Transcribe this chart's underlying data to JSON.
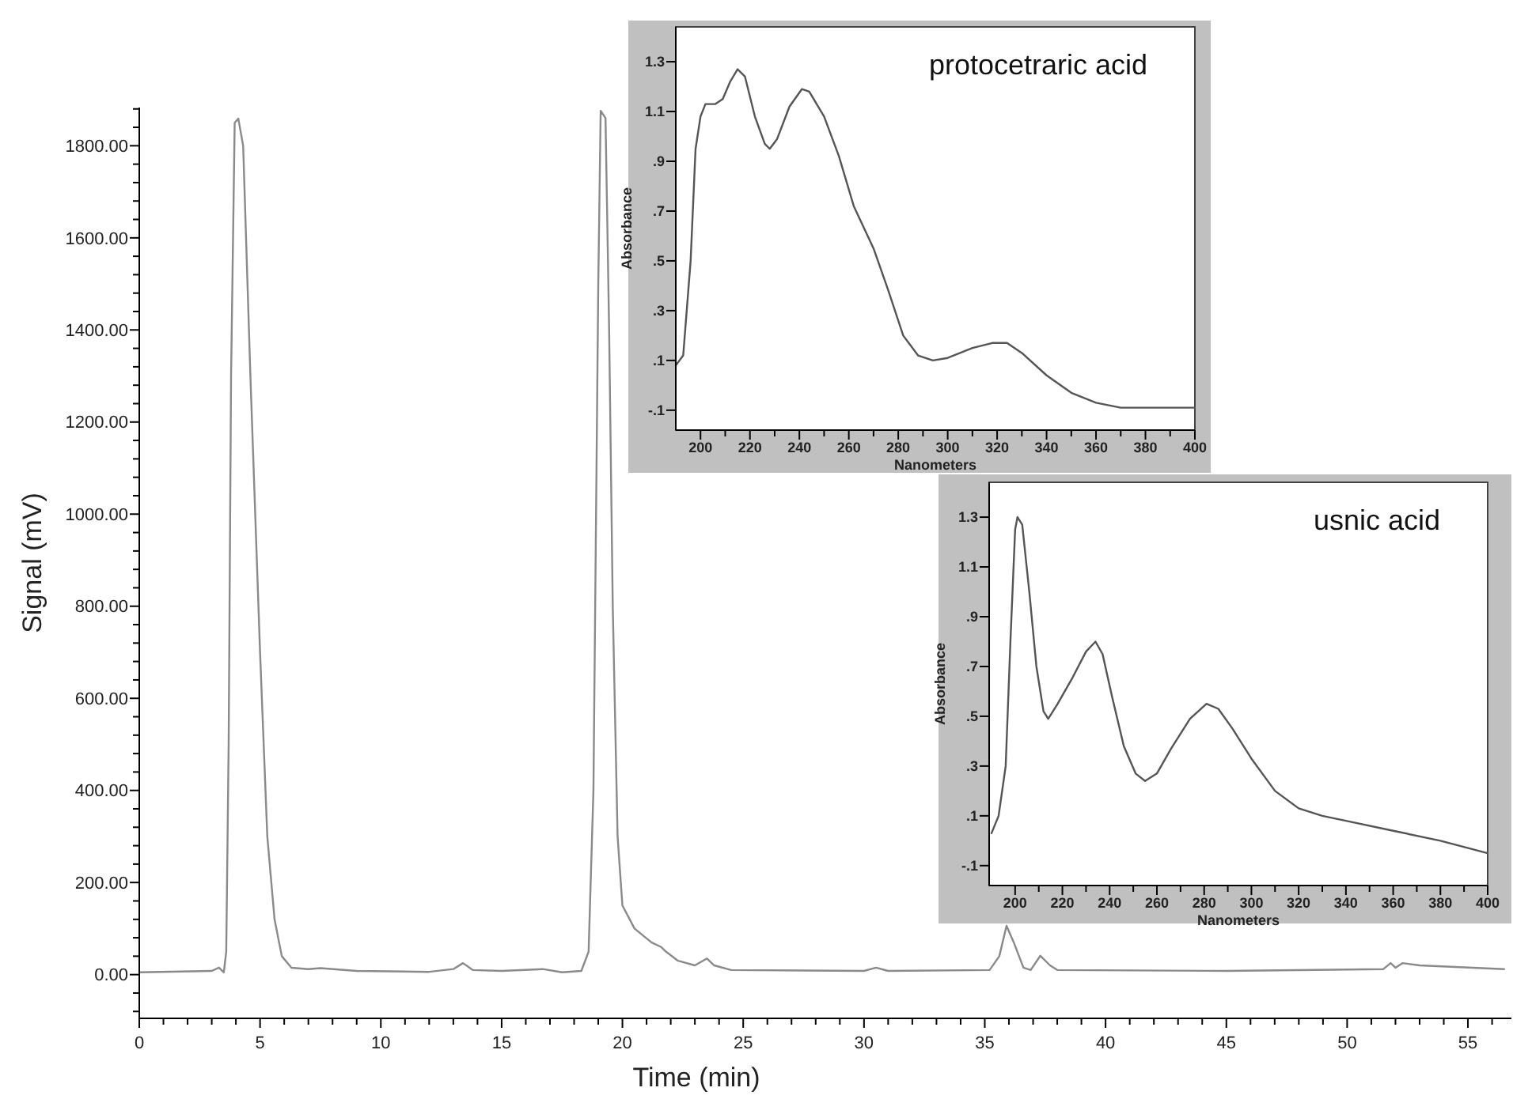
{
  "chart_data": [
    {
      "type": "line",
      "xlabel": "Time (min)",
      "ylabel": "Signal (mV)",
      "color": "#8a8a8a",
      "x": [
        0,
        3,
        3.3,
        3.5,
        3.6,
        3.7,
        3.8,
        3.95,
        4.1,
        4.3,
        4.6,
        5.0,
        5.3,
        5.6,
        5.9,
        6.3,
        7,
        7.5,
        9,
        12,
        13,
        13.4,
        13.8,
        15,
        16.7,
        17.5,
        18.3,
        18.6,
        18.8,
        19.0,
        19.1,
        19.3,
        19.45,
        19.6,
        19.8,
        20.0,
        20.5,
        21.2,
        21.6,
        21.8,
        22.3,
        23,
        23.5,
        23.8,
        24.5,
        30,
        30.5,
        31,
        35.2,
        35.6,
        35.9,
        36.2,
        36.6,
        36.9,
        37.3,
        37.7,
        38,
        45,
        51.5,
        51.8,
        52,
        52.3,
        53,
        56.5
      ],
      "values": [
        5,
        8,
        15,
        5,
        50,
        500,
        1300,
        1850,
        1859,
        1800,
        1300,
        700,
        300,
        120,
        40,
        15,
        12,
        14,
        8,
        6,
        12,
        25,
        10,
        8,
        12,
        5,
        8,
        50,
        400,
        1500,
        1876,
        1860,
        1400,
        800,
        300,
        150,
        100,
        70,
        60,
        50,
        30,
        20,
        35,
        20,
        10,
        8,
        15,
        8,
        10,
        40,
        106,
        70,
        15,
        10,
        41,
        20,
        10,
        8,
        12,
        25,
        15,
        25,
        20,
        12
      ],
      "xlim": [
        0,
        56.8
      ],
      "ylim": [
        -95,
        1883
      ],
      "xticks": [
        0,
        {
          "value": 1,
          "label": null
        },
        {
          "value": 2,
          "label": null
        },
        {
          "value": 3,
          "label": null
        },
        {
          "value": 4,
          "label": null
        },
        5,
        {
          "value": 6,
          "label": null
        },
        {
          "value": 7,
          "label": null
        },
        {
          "value": 8,
          "label": null
        },
        {
          "value": 9,
          "label": null
        },
        10,
        {
          "value": 11,
          "label": null
        },
        {
          "value": 12,
          "label": null
        },
        {
          "value": 13,
          "label": null
        },
        {
          "value": 14,
          "label": null
        },
        15,
        {
          "value": 16,
          "label": null
        },
        {
          "value": 17,
          "label": null
        },
        {
          "value": 18,
          "label": null
        },
        {
          "value": 19,
          "label": null
        },
        20,
        {
          "value": 21,
          "label": null
        },
        {
          "value": 22,
          "label": null
        },
        {
          "value": 23,
          "label": null
        },
        {
          "value": 24,
          "label": null
        },
        25,
        {
          "value": 26,
          "label": null
        },
        {
          "value": 27,
          "label": null
        },
        {
          "value": 28,
          "label": null
        },
        {
          "value": 29,
          "label": null
        },
        30,
        {
          "value": 31,
          "label": null
        },
        {
          "value": 32,
          "label": null
        },
        {
          "value": 33,
          "label": null
        },
        {
          "value": 34,
          "label": null
        },
        35,
        {
          "value": 36,
          "label": null
        },
        {
          "value": 37,
          "label": null
        },
        {
          "value": 38,
          "label": null
        },
        {
          "value": 39,
          "label": null
        },
        40,
        {
          "value": 41,
          "label": null
        },
        {
          "value": 42,
          "label": null
        },
        {
          "value": 43,
          "label": null
        },
        {
          "value": 44,
          "label": null
        },
        45,
        {
          "value": 46,
          "label": null
        },
        {
          "value": 47,
          "label": null
        },
        {
          "value": 48,
          "label": null
        },
        {
          "value": 49,
          "label": null
        },
        50,
        {
          "value": 51,
          "label": null
        },
        {
          "value": 52,
          "label": null
        },
        {
          "value": 53,
          "label": null
        },
        {
          "value": 54,
          "label": null
        },
        55,
        {
          "value": 56,
          "label": null
        }
      ],
      "yticks": [
        {
          "value": -80,
          "label": null
        },
        {
          "value": -40,
          "label": null
        },
        {
          "value": 0,
          "label": "0.00"
        },
        {
          "value": 40,
          "label": null
        },
        {
          "value": 80,
          "label": null
        },
        {
          "value": 120,
          "label": null
        },
        {
          "value": 160,
          "label": null
        },
        {
          "value": 200,
          "label": "200.00"
        },
        {
          "value": 240,
          "label": null
        },
        {
          "value": 280,
          "label": null
        },
        {
          "value": 320,
          "label": null
        },
        {
          "value": 360,
          "label": null
        },
        {
          "value": 400,
          "label": "400.00"
        },
        {
          "value": 440,
          "label": null
        },
        {
          "value": 480,
          "label": null
        },
        {
          "value": 520,
          "label": null
        },
        {
          "value": 560,
          "label": null
        },
        {
          "value": 600,
          "label": "600.00"
        },
        {
          "value": 640,
          "label": null
        },
        {
          "value": 680,
          "label": null
        },
        {
          "value": 720,
          "label": null
        },
        {
          "value": 760,
          "label": null
        },
        {
          "value": 800,
          "label": "800.00"
        },
        {
          "value": 840,
          "label": null
        },
        {
          "value": 880,
          "label": null
        },
        {
          "value": 920,
          "label": null
        },
        {
          "value": 960,
          "label": null
        },
        {
          "value": 1000,
          "label": "1000.00"
        },
        {
          "value": 1040,
          "label": null
        },
        {
          "value": 1080,
          "label": null
        },
        {
          "value": 1120,
          "label": null
        },
        {
          "value": 1160,
          "label": null
        },
        {
          "value": 1200,
          "label": "1200.00"
        },
        {
          "value": 1240,
          "label": null
        },
        {
          "value": 1280,
          "label": null
        },
        {
          "value": 1320,
          "label": null
        },
        {
          "value": 1360,
          "label": null
        },
        {
          "value": 1400,
          "label": "1400.00"
        },
        {
          "value": 1440,
          "label": null
        },
        {
          "value": 1480,
          "label": null
        },
        {
          "value": 1520,
          "label": null
        },
        {
          "value": 1560,
          "label": null
        },
        {
          "value": 1600,
          "label": "1600.00"
        },
        {
          "value": 1640,
          "label": null
        },
        {
          "value": 1680,
          "label": null
        },
        {
          "value": 1720,
          "label": null
        },
        {
          "value": 1760,
          "label": null
        },
        {
          "value": 1800,
          "label": "1800.00"
        },
        {
          "value": 1840,
          "label": null
        },
        {
          "value": 1880,
          "label": null
        }
      ]
    },
    {
      "type": "line",
      "title": "protocetraric acid",
      "xlabel": "Nanometers",
      "ylabel": "Absorbance",
      "color": "#555555",
      "x": [
        190,
        193,
        196,
        198,
        200,
        202,
        206,
        209,
        212,
        215,
        218,
        222,
        226,
        228,
        231,
        236,
        241,
        244,
        250,
        256,
        262,
        270,
        276,
        282,
        288,
        294,
        300,
        310,
        318,
        324,
        330,
        340,
        350,
        360,
        370,
        380,
        390,
        400
      ],
      "values": [
        0.08,
        0.12,
        0.5,
        0.95,
        1.08,
        1.13,
        1.13,
        1.15,
        1.22,
        1.27,
        1.24,
        1.08,
        0.97,
        0.95,
        0.99,
        1.12,
        1.19,
        1.18,
        1.08,
        0.92,
        0.72,
        0.55,
        0.38,
        0.2,
        0.12,
        0.1,
        0.11,
        0.15,
        0.17,
        0.17,
        0.13,
        0.04,
        -0.03,
        -0.07,
        -0.09,
        -0.09,
        -0.09,
        -0.09
      ],
      "xlim": [
        190,
        400
      ],
      "ylim": [
        -0.18,
        1.44
      ],
      "xticks": [
        200,
        {
          "value": 210,
          "label": null
        },
        220,
        {
          "value": 230,
          "label": null
        },
        240,
        {
          "value": 250,
          "label": null
        },
        260,
        {
          "value": 270,
          "label": null
        },
        280,
        {
          "value": 290,
          "label": null
        },
        300,
        {
          "value": 310,
          "label": null
        },
        320,
        {
          "value": 330,
          "label": null
        },
        340,
        {
          "value": 350,
          "label": null
        },
        360,
        {
          "value": 370,
          "label": null
        },
        380,
        {
          "value": 390,
          "label": null
        },
        400
      ],
      "yticks": [
        {
          "value": -0.1,
          "label": "-.1"
        },
        {
          "value": 0.1,
          "label": ".1"
        },
        {
          "value": 0.3,
          "label": ".3"
        },
        {
          "value": 0.5,
          "label": ".5"
        },
        {
          "value": 0.7,
          "label": ".7"
        },
        {
          "value": 0.9,
          "label": ".9"
        },
        {
          "value": 1.1,
          "label": "1.1"
        },
        {
          "value": 1.3,
          "label": "1.3"
        }
      ]
    },
    {
      "type": "line",
      "title": "usnic acid",
      "xlabel": "Nanometers",
      "ylabel": "Absorbance",
      "color": "#555555",
      "x": [
        190,
        193,
        196,
        198,
        200,
        201,
        203,
        206,
        209,
        212,
        214,
        218,
        224,
        230,
        234,
        237,
        241,
        246,
        251,
        255,
        260,
        266,
        274,
        281,
        286,
        292,
        300,
        310,
        320,
        330,
        340,
        360,
        380,
        400
      ],
      "values": [
        0.03,
        0.1,
        0.3,
        0.8,
        1.25,
        1.3,
        1.27,
        1.0,
        0.7,
        0.52,
        0.49,
        0.55,
        0.65,
        0.76,
        0.8,
        0.75,
        0.58,
        0.38,
        0.27,
        0.24,
        0.27,
        0.37,
        0.49,
        0.55,
        0.53,
        0.45,
        0.33,
        0.2,
        0.13,
        0.1,
        0.08,
        0.04,
        0,
        -0.05
      ],
      "xlim": [
        189,
        400
      ],
      "ylim": [
        -0.18,
        1.44
      ],
      "xticks": [
        200,
        {
          "value": 210,
          "label": null
        },
        220,
        {
          "value": 230,
          "label": null
        },
        240,
        {
          "value": 250,
          "label": null
        },
        260,
        {
          "value": 270,
          "label": null
        },
        280,
        {
          "value": 290,
          "label": null
        },
        300,
        {
          "value": 310,
          "label": null
        },
        320,
        {
          "value": 330,
          "label": null
        },
        340,
        {
          "value": 350,
          "label": null
        },
        360,
        {
          "value": 370,
          "label": null
        },
        380,
        {
          "value": 390,
          "label": null
        },
        400
      ],
      "yticks": [
        {
          "value": -0.1,
          "label": "-.1"
        },
        {
          "value": 0.1,
          "label": ".1"
        },
        {
          "value": 0.3,
          "label": ".3"
        },
        {
          "value": 0.5,
          "label": ".5"
        },
        {
          "value": 0.7,
          "label": ".7"
        },
        {
          "value": 0.9,
          "label": ".9"
        },
        {
          "value": 1.1,
          "label": "1.1"
        },
        {
          "value": 1.3,
          "label": "1.3"
        }
      ]
    }
  ]
}
